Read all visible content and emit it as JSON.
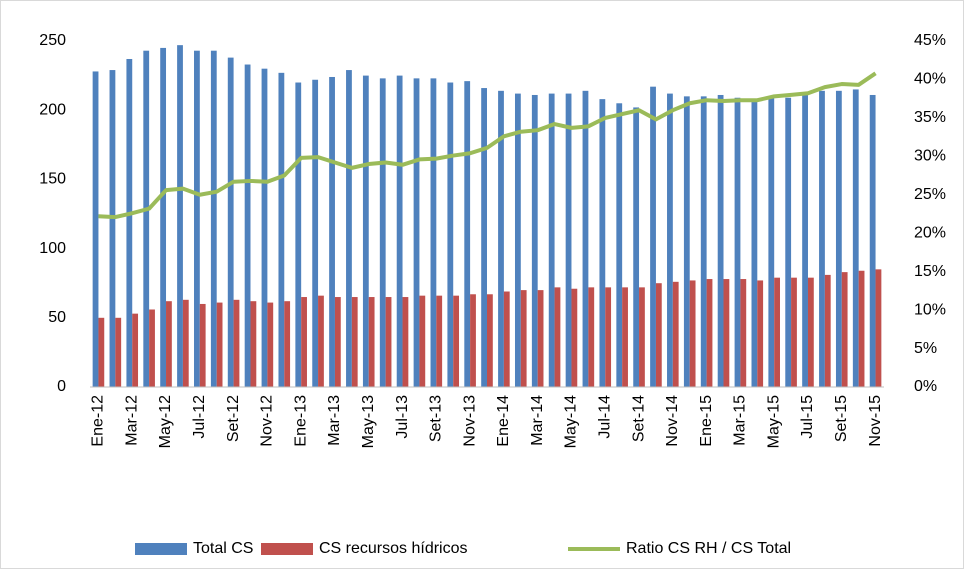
{
  "chart_data": {
    "type": "bar-line",
    "categories": [
      "Ene-12",
      null,
      "Mar-12",
      null,
      "May-12",
      null,
      "Jul-12",
      null,
      "Set-12",
      null,
      "Nov-12",
      null,
      "Ene-13",
      null,
      "Mar-13",
      null,
      "May-13",
      null,
      "Jul-13",
      null,
      "Set-13",
      null,
      "Nov-13",
      null,
      "Ene-14",
      null,
      "Mar-14",
      null,
      "May-14",
      null,
      "Jul-14",
      null,
      "Set-14",
      null,
      "Nov-14",
      null,
      "Ene-15",
      null,
      "Mar-15",
      null,
      "May-15",
      null,
      "Jul-15",
      null,
      "Set-15",
      null,
      "Nov-15"
    ],
    "series": [
      {
        "name": "Total CS",
        "type": "bar",
        "color": "#4f81bd",
        "values": [
          228,
          229,
          237,
          243,
          245,
          247,
          243,
          243,
          238,
          233,
          230,
          227,
          220,
          222,
          224,
          229,
          225,
          223,
          225,
          223,
          223,
          220,
          221,
          216,
          214,
          212,
          211,
          212,
          212,
          214,
          208,
          205,
          202,
          217,
          212,
          210,
          210,
          211,
          209,
          208,
          210,
          209,
          211,
          214,
          214,
          215,
          211
        ]
      },
      {
        "name": "CS recursos hídricos",
        "type": "bar",
        "color": "#c0504d",
        "values": [
          50,
          50,
          53,
          56,
          62,
          63,
          60,
          61,
          63,
          62,
          61,
          62,
          65,
          66,
          65,
          65,
          65,
          65,
          65,
          66,
          66,
          66,
          67,
          67,
          69,
          70,
          70,
          72,
          71,
          72,
          72,
          72,
          72,
          75,
          76,
          77,
          78,
          78,
          78,
          77,
          79,
          79,
          79,
          81,
          83,
          84,
          85
        ]
      },
      {
        "name": "Ratio CS RH / CS Total",
        "type": "line",
        "axis": "y2",
        "color": "#9bbb59",
        "values": [
          22.2,
          22.1,
          22.6,
          23.2,
          25.6,
          25.8,
          25.0,
          25.4,
          26.7,
          26.8,
          26.7,
          27.5,
          29.8,
          29.9,
          29.2,
          28.5,
          29.0,
          29.2,
          28.9,
          29.6,
          29.7,
          30.1,
          30.4,
          31.1,
          32.6,
          33.2,
          33.4,
          34.2,
          33.7,
          33.9,
          35.0,
          35.5,
          36.0,
          34.8,
          36.0,
          36.9,
          37.3,
          37.2,
          37.3,
          37.3,
          37.8,
          38.0,
          38.2,
          39.0,
          39.4,
          39.3,
          40.8
        ]
      }
    ],
    "ylim": [
      0,
      250
    ],
    "yticks": [
      0,
      50,
      100,
      150,
      200,
      250
    ],
    "y2lim": [
      0,
      45
    ],
    "y2ticks": [
      {
        "value": 0,
        "label": "0%"
      },
      {
        "value": 5,
        "label": "5%"
      },
      {
        "value": 10,
        "label": "10%"
      },
      {
        "value": 15,
        "label": "15%"
      },
      {
        "value": 20,
        "label": "20%"
      },
      {
        "value": 25,
        "label": "25%"
      },
      {
        "value": 30,
        "label": "30%"
      },
      {
        "value": 35,
        "label": "35%"
      },
      {
        "value": 40,
        "label": "40%"
      },
      {
        "value": 45,
        "label": "45%"
      }
    ],
    "legend": "bottom"
  }
}
